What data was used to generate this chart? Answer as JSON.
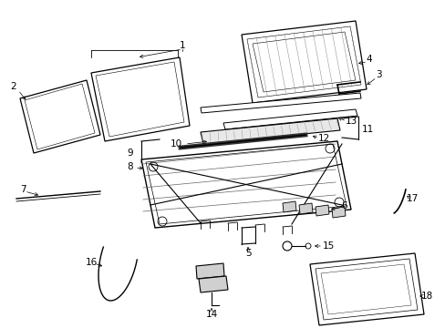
{
  "bg_color": "#ffffff",
  "line_color": "#000000",
  "gray_fill": "#e0e0e0",
  "dark_gray": "#aaaaaa",
  "hatch_color": "#cccccc"
}
